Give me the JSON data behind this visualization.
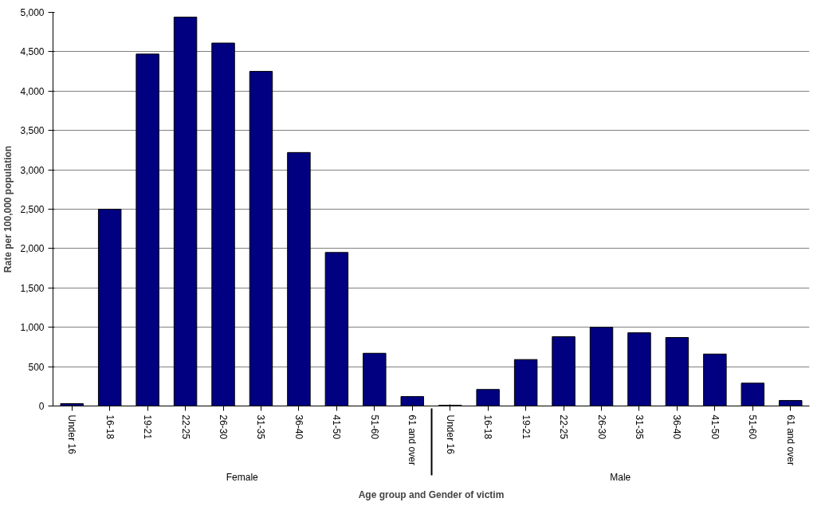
{
  "chart_data": {
    "type": "bar",
    "xlabel": "Age group and Gender of victim",
    "ylabel": "Rate per 100,000 population",
    "categories": [
      "Under 16",
      "16-18",
      "19-21",
      "22-25",
      "26-30",
      "31-35",
      "36-40",
      "41-50",
      "51-60",
      "61 and over",
      "Under 16",
      "16-18",
      "19-21",
      "22-25",
      "26-30",
      "31-35",
      "36-40",
      "41-50",
      "51-60",
      "61 and over"
    ],
    "annotations": [
      "Female",
      "Male"
    ],
    "series": [
      {
        "color": "#000080",
        "values": [
          30,
          2500,
          4470,
          4940,
          4610,
          4250,
          3220,
          1950,
          670,
          120,
          10,
          210,
          590,
          880,
          1000,
          930,
          870,
          660,
          290,
          70
        ]
      }
    ],
    "ylim": [
      0,
      5000
    ],
    "yticks": [
      0,
      {
        "value": 500,
        "label": "500"
      },
      {
        "value": 1000,
        "label": "1,000"
      },
      {
        "value": 1500,
        "label": "1,500"
      },
      {
        "value": 2000,
        "label": "2,000"
      },
      {
        "value": 2500,
        "label": "2,500"
      },
      {
        "value": 3000,
        "label": "3,000"
      },
      {
        "value": 3500,
        "label": "3,500"
      },
      {
        "value": 4000,
        "label": "4,000"
      },
      {
        "value": 4500,
        "label": "4,500"
      },
      {
        "value": 5000,
        "label": "5,000"
      }
    ],
    "grid": "y"
  }
}
